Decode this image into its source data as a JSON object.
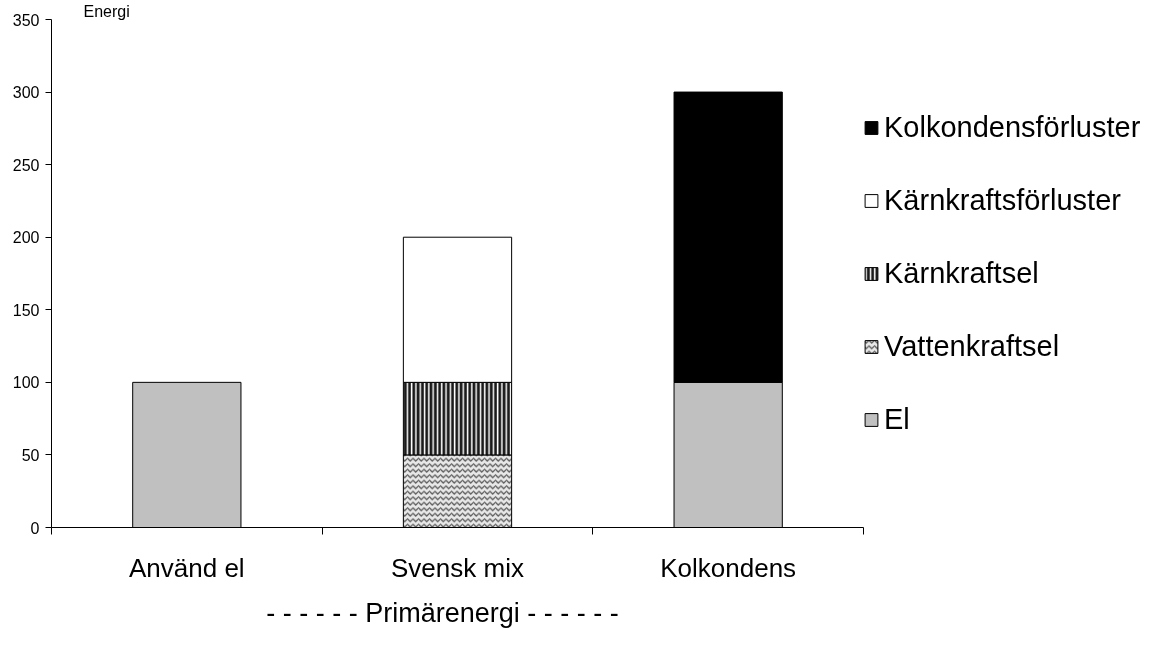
{
  "chart_data": {
    "type": "bar",
    "stacked": true,
    "categories": [
      "Använd el",
      "Svensk mix",
      "Kolkondens"
    ],
    "xlabel": "- - - - - -   Primärenergi   - - - - - -",
    "ylabel": "Energi",
    "ylim": [
      0,
      350
    ],
    "yticks": [
      0,
      50,
      100,
      150,
      200,
      250,
      300,
      350
    ],
    "legend": "right",
    "series": [
      {
        "name": "El",
        "color": "#c0c0c0",
        "values": [
          100,
          null,
          100
        ]
      },
      {
        "name": "Vattenkraftsel",
        "color": "#e8e8e8",
        "values": [
          null,
          50,
          null
        ]
      },
      {
        "name": "Kärnkraftsel",
        "color": "#1a1a1a",
        "values": [
          null,
          50,
          null
        ]
      },
      {
        "name": "Kärnkraftsförluster",
        "color": "#ffffff",
        "values": [
          null,
          100,
          null
        ]
      },
      {
        "name": "Kolkondensförluster",
        "color": "#000000",
        "values": [
          null,
          null,
          200
        ]
      }
    ]
  }
}
